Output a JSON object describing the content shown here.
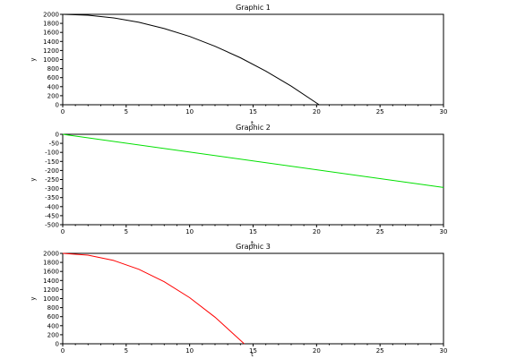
{
  "chart_data": [
    {
      "type": "line",
      "title": "Graphic 1",
      "xlabel": "t",
      "ylabel": "y",
      "xlim": [
        0,
        30
      ],
      "ylim": [
        0,
        2000
      ],
      "xticks": [
        0,
        5,
        10,
        15,
        20,
        25,
        30
      ],
      "yticks": [
        0,
        200,
        400,
        600,
        800,
        1000,
        1200,
        1400,
        1600,
        1800,
        2000
      ],
      "grid": false,
      "series": [
        {
          "color": "#000000",
          "x": [
            0,
            2,
            4,
            6,
            8,
            10,
            12,
            14,
            16,
            18,
            20.2
          ],
          "y": [
            2000,
            1980,
            1921,
            1823,
            1686,
            1510,
            1294,
            1039,
            745,
            411,
            0
          ]
        }
      ]
    },
    {
      "type": "line",
      "title": "Graphic 2",
      "xlabel": "t",
      "ylabel": "y",
      "xlim": [
        0,
        30
      ],
      "ylim": [
        -500,
        0
      ],
      "xticks": [
        0,
        5,
        10,
        15,
        20,
        25,
        30
      ],
      "yticks": [
        -500,
        -450,
        -400,
        -350,
        -300,
        -250,
        -200,
        -150,
        -100,
        -50,
        0
      ],
      "grid": false,
      "series": [
        {
          "color": "#00e000",
          "x": [
            0,
            30
          ],
          "y": [
            0,
            -294
          ]
        }
      ]
    },
    {
      "type": "line",
      "title": "Graphic 3",
      "xlabel": "t",
      "ylabel": "y",
      "xlim": [
        0,
        30
      ],
      "ylim": [
        0,
        2000
      ],
      "xticks": [
        0,
        5,
        10,
        15,
        20,
        25,
        30
      ],
      "yticks": [
        0,
        200,
        400,
        600,
        800,
        1000,
        1200,
        1400,
        1600,
        1800,
        2000
      ],
      "grid": false,
      "series": [
        {
          "color": "#ff0000",
          "x": [
            0,
            2,
            4,
            6,
            8,
            10,
            12,
            14.3
          ],
          "y": [
            2000,
            1961,
            1843,
            1647,
            1373,
            1020,
            588,
            0
          ]
        }
      ]
    }
  ]
}
